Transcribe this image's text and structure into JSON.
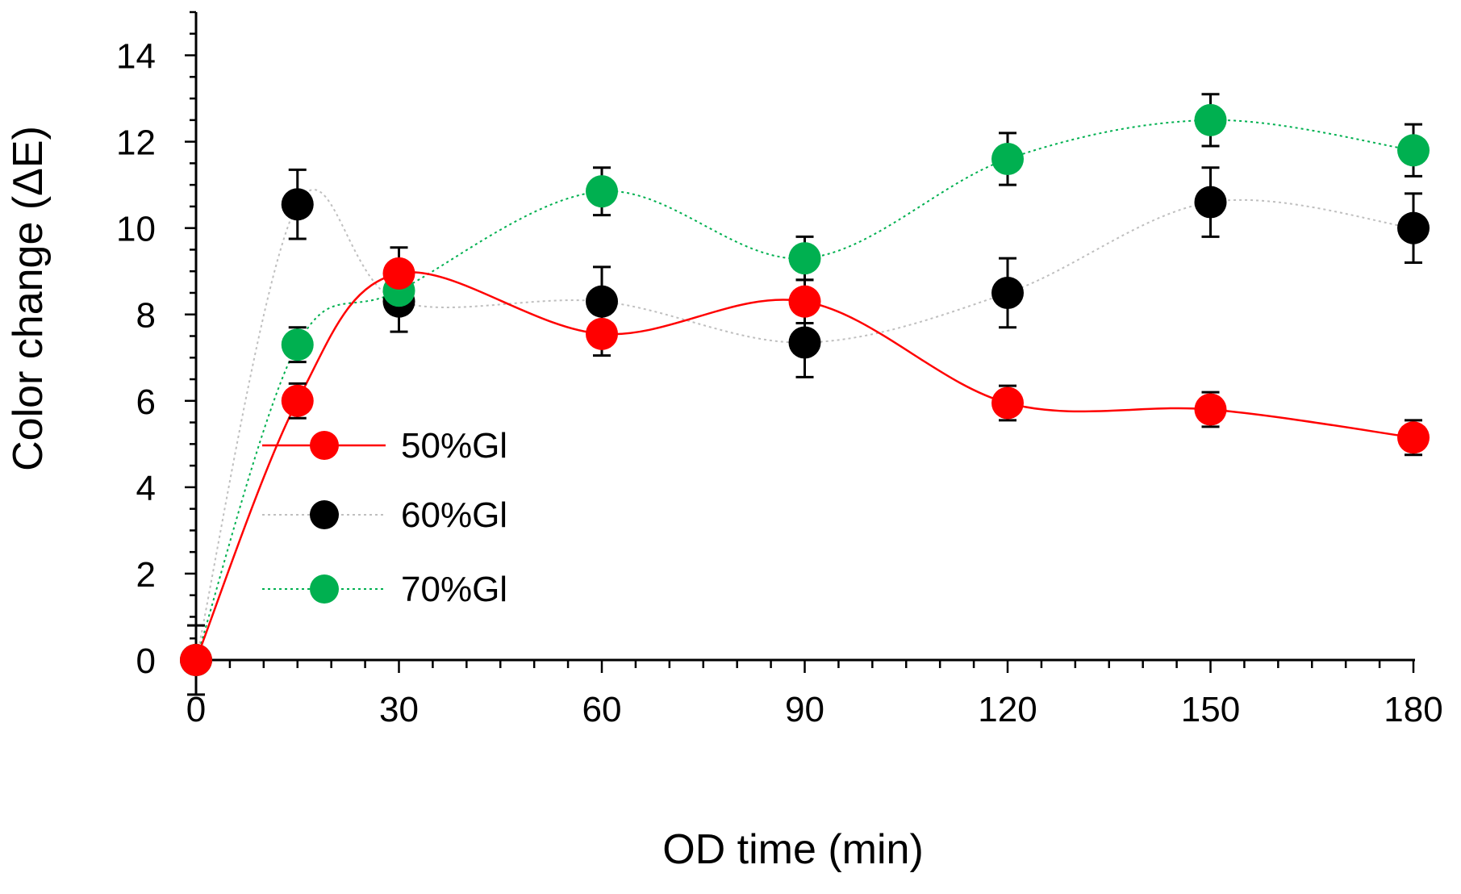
{
  "chart_data": {
    "type": "scatter",
    "title": "",
    "xlabel": "OD time (min)",
    "ylabel": "Color change (ΔE)",
    "xlim": [
      0,
      180
    ],
    "ylim": [
      0,
      15
    ],
    "xticks": [
      0,
      30,
      60,
      90,
      120,
      150,
      180
    ],
    "yticks": [
      0,
      2,
      4,
      6,
      8,
      10,
      12,
      14
    ],
    "x_minor_step": 5,
    "y_minor_step": 0.5,
    "grid": false,
    "legend_position": "center-left",
    "x": [
      0,
      15,
      30,
      60,
      90,
      120,
      150,
      180
    ],
    "series": [
      {
        "name": "50%Gl",
        "color": "#ff0000",
        "line_style": "solid",
        "values": [
          0,
          6.0,
          8.95,
          7.55,
          8.3,
          5.95,
          5.8,
          5.15
        ],
        "errors": [
          0,
          0.4,
          0.6,
          0.5,
          0.5,
          0.4,
          0.4,
          0.4
        ]
      },
      {
        "name": "60%Gl",
        "color": "#000000",
        "line_style": "dotted",
        "line_color": "#bfbfbf",
        "values": [
          0,
          10.55,
          8.3,
          8.3,
          7.35,
          8.5,
          10.6,
          10.0
        ],
        "errors": [
          0.8,
          0.8,
          0.7,
          0.8,
          0.8,
          0.8,
          0.8,
          0.8
        ]
      },
      {
        "name": "70%Gl",
        "color": "#00b050",
        "line_style": "dotted",
        "line_color": "#00b050",
        "values": [
          0,
          7.3,
          8.55,
          10.85,
          9.3,
          11.6,
          12.5,
          11.8
        ],
        "errors": [
          0,
          0.4,
          0.4,
          0.55,
          0.5,
          0.6,
          0.6,
          0.6
        ]
      }
    ]
  }
}
